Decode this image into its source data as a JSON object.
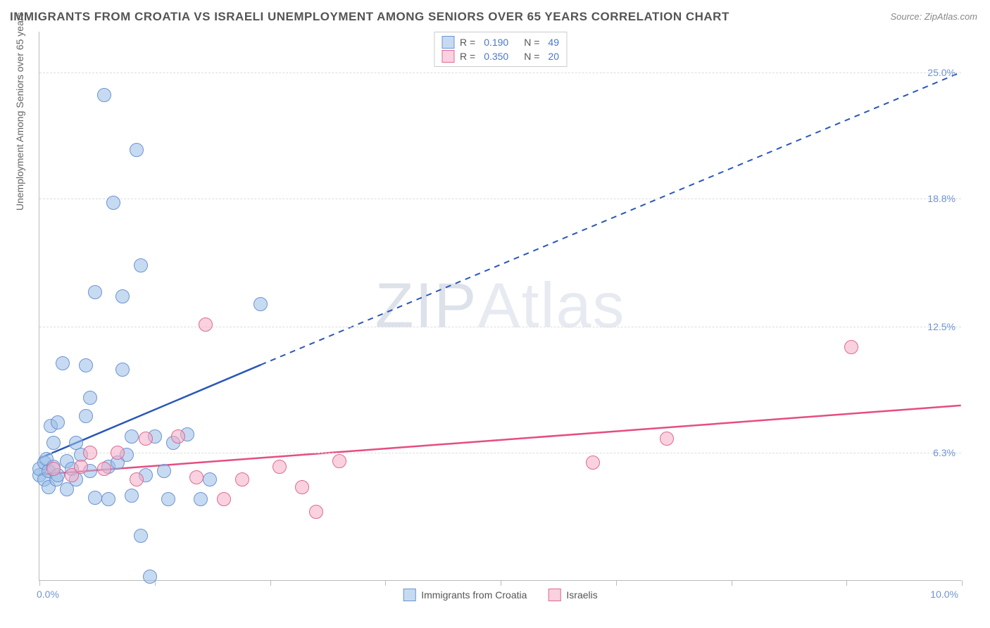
{
  "title": "IMMIGRANTS FROM CROATIA VS ISRAELI UNEMPLOYMENT AMONG SENIORS OVER 65 YEARS CORRELATION CHART",
  "source": "Source: ZipAtlas.com",
  "watermark_bold": "ZIP",
  "watermark_thin": "Atlas",
  "chart": {
    "type": "scatter",
    "xlim": [
      0,
      10
    ],
    "ylim": [
      0,
      27
    ],
    "x_min_label": "0.0%",
    "x_max_label": "10.0%",
    "y_grid": [
      {
        "v": 6.3,
        "label": "6.3%"
      },
      {
        "v": 12.5,
        "label": "12.5%"
      },
      {
        "v": 18.8,
        "label": "18.8%"
      },
      {
        "v": 25.0,
        "label": "25.0%"
      }
    ],
    "x_ticks": [
      0,
      1.25,
      2.5,
      3.75,
      5.0,
      6.25,
      7.5,
      8.75,
      10.0
    ],
    "y_axis_title": "Unemployment Among Seniors over 65 years",
    "marker_radius": 10,
    "background_color": "#ffffff",
    "grid_color": "#dddddd",
    "series": [
      {
        "name": "Immigrants from Croatia",
        "color_fill": "rgba(151,189,232,0.55)",
        "color_stroke": "#6f93d1",
        "R": "0.190",
        "N": "49",
        "trend": {
          "x1": 0,
          "y1": 6.0,
          "x2_solid": 2.4,
          "y2_solid": 10.6,
          "x2_dash": 10,
          "y2_dash": 25.0,
          "stroke": "#2a57b9",
          "width": 2.5
        },
        "points": [
          [
            0.0,
            5.2
          ],
          [
            0.0,
            5.5
          ],
          [
            0.05,
            5.0
          ],
          [
            0.05,
            5.8
          ],
          [
            0.08,
            6.0
          ],
          [
            0.1,
            5.4
          ],
          [
            0.1,
            4.6
          ],
          [
            0.12,
            7.6
          ],
          [
            0.15,
            5.6
          ],
          [
            0.15,
            6.8
          ],
          [
            0.18,
            5.0
          ],
          [
            0.2,
            7.8
          ],
          [
            0.2,
            5.2
          ],
          [
            0.25,
            10.7
          ],
          [
            0.3,
            5.9
          ],
          [
            0.3,
            4.5
          ],
          [
            0.35,
            5.5
          ],
          [
            0.4,
            6.8
          ],
          [
            0.4,
            5.0
          ],
          [
            0.45,
            6.2
          ],
          [
            0.5,
            10.6
          ],
          [
            0.5,
            8.1
          ],
          [
            0.55,
            9.0
          ],
          [
            0.55,
            5.4
          ],
          [
            0.6,
            4.1
          ],
          [
            0.6,
            14.2
          ],
          [
            0.7,
            23.9
          ],
          [
            0.75,
            5.6
          ],
          [
            0.75,
            4.0
          ],
          [
            0.8,
            18.6
          ],
          [
            0.85,
            5.8
          ],
          [
            0.9,
            10.4
          ],
          [
            0.9,
            14.0
          ],
          [
            0.95,
            6.2
          ],
          [
            1.0,
            7.1
          ],
          [
            1.0,
            4.2
          ],
          [
            1.05,
            21.2
          ],
          [
            1.1,
            15.5
          ],
          [
            1.1,
            2.2
          ],
          [
            1.15,
            5.2
          ],
          [
            1.2,
            0.2
          ],
          [
            1.25,
            7.1
          ],
          [
            1.35,
            5.4
          ],
          [
            1.4,
            4.0
          ],
          [
            1.45,
            6.8
          ],
          [
            1.6,
            7.2
          ],
          [
            1.75,
            4.0
          ],
          [
            1.85,
            5.0
          ],
          [
            2.4,
            13.6
          ]
        ]
      },
      {
        "name": "Israelis",
        "color_fill": "rgba(244,171,196,0.55)",
        "color_stroke": "#e06a93",
        "R": "0.350",
        "N": "20",
        "trend": {
          "x1": 0,
          "y1": 5.2,
          "x2_solid": 10,
          "y2_solid": 8.6,
          "stroke": "#e54d82",
          "width": 2.5
        },
        "points": [
          [
            0.15,
            5.5
          ],
          [
            0.35,
            5.2
          ],
          [
            0.45,
            5.6
          ],
          [
            0.55,
            6.3
          ],
          [
            0.7,
            5.5
          ],
          [
            0.85,
            6.3
          ],
          [
            1.05,
            5.0
          ],
          [
            1.15,
            7.0
          ],
          [
            1.5,
            7.1
          ],
          [
            1.7,
            5.1
          ],
          [
            1.8,
            12.6
          ],
          [
            2.0,
            4.0
          ],
          [
            2.2,
            5.0
          ],
          [
            2.6,
            5.6
          ],
          [
            2.85,
            4.6
          ],
          [
            3.0,
            3.4
          ],
          [
            3.25,
            5.9
          ],
          [
            6.0,
            5.8
          ],
          [
            6.8,
            7.0
          ],
          [
            8.8,
            11.5
          ]
        ]
      }
    ],
    "legend_bottom": [
      {
        "label": "Immigrants from Croatia",
        "class": "blue"
      },
      {
        "label": "Israelis",
        "class": "pink"
      }
    ]
  }
}
